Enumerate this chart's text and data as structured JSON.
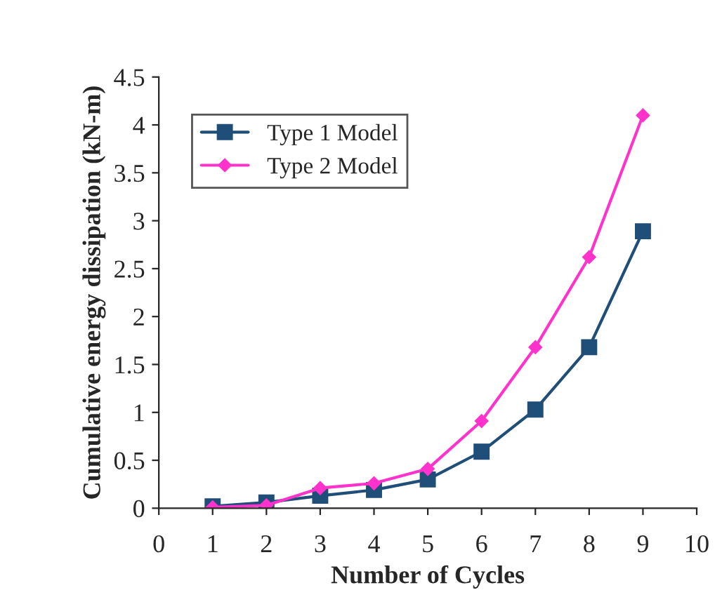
{
  "chart_data": {
    "type": "line",
    "xlabel": "Number of Cycles",
    "ylabel": "Cumulative energy dissipation (kN-m)",
    "x": [
      1,
      2,
      3,
      4,
      5,
      6,
      7,
      8,
      9
    ],
    "series": [
      {
        "name": "Type 1 Model",
        "color": "#1f4e79",
        "marker": "square",
        "values": [
          0.02,
          0.06,
          0.13,
          0.19,
          0.3,
          0.59,
          1.03,
          1.68,
          2.89
        ]
      },
      {
        "name": "Type 2 Model",
        "color": "#ff33cc",
        "marker": "diamond",
        "values": [
          0.01,
          0.03,
          0.21,
          0.26,
          0.41,
          0.91,
          1.68,
          2.62,
          4.1
        ]
      }
    ],
    "xlim": [
      0,
      10
    ],
    "xticks": [
      0,
      1,
      2,
      3,
      4,
      5,
      6,
      7,
      8,
      9,
      10
    ],
    "ylim": [
      0,
      4.5
    ],
    "yticks": [
      0,
      0.5,
      1,
      1.5,
      2,
      2.5,
      3,
      3.5,
      4,
      4.5
    ],
    "grid": false,
    "legend": "top left"
  }
}
